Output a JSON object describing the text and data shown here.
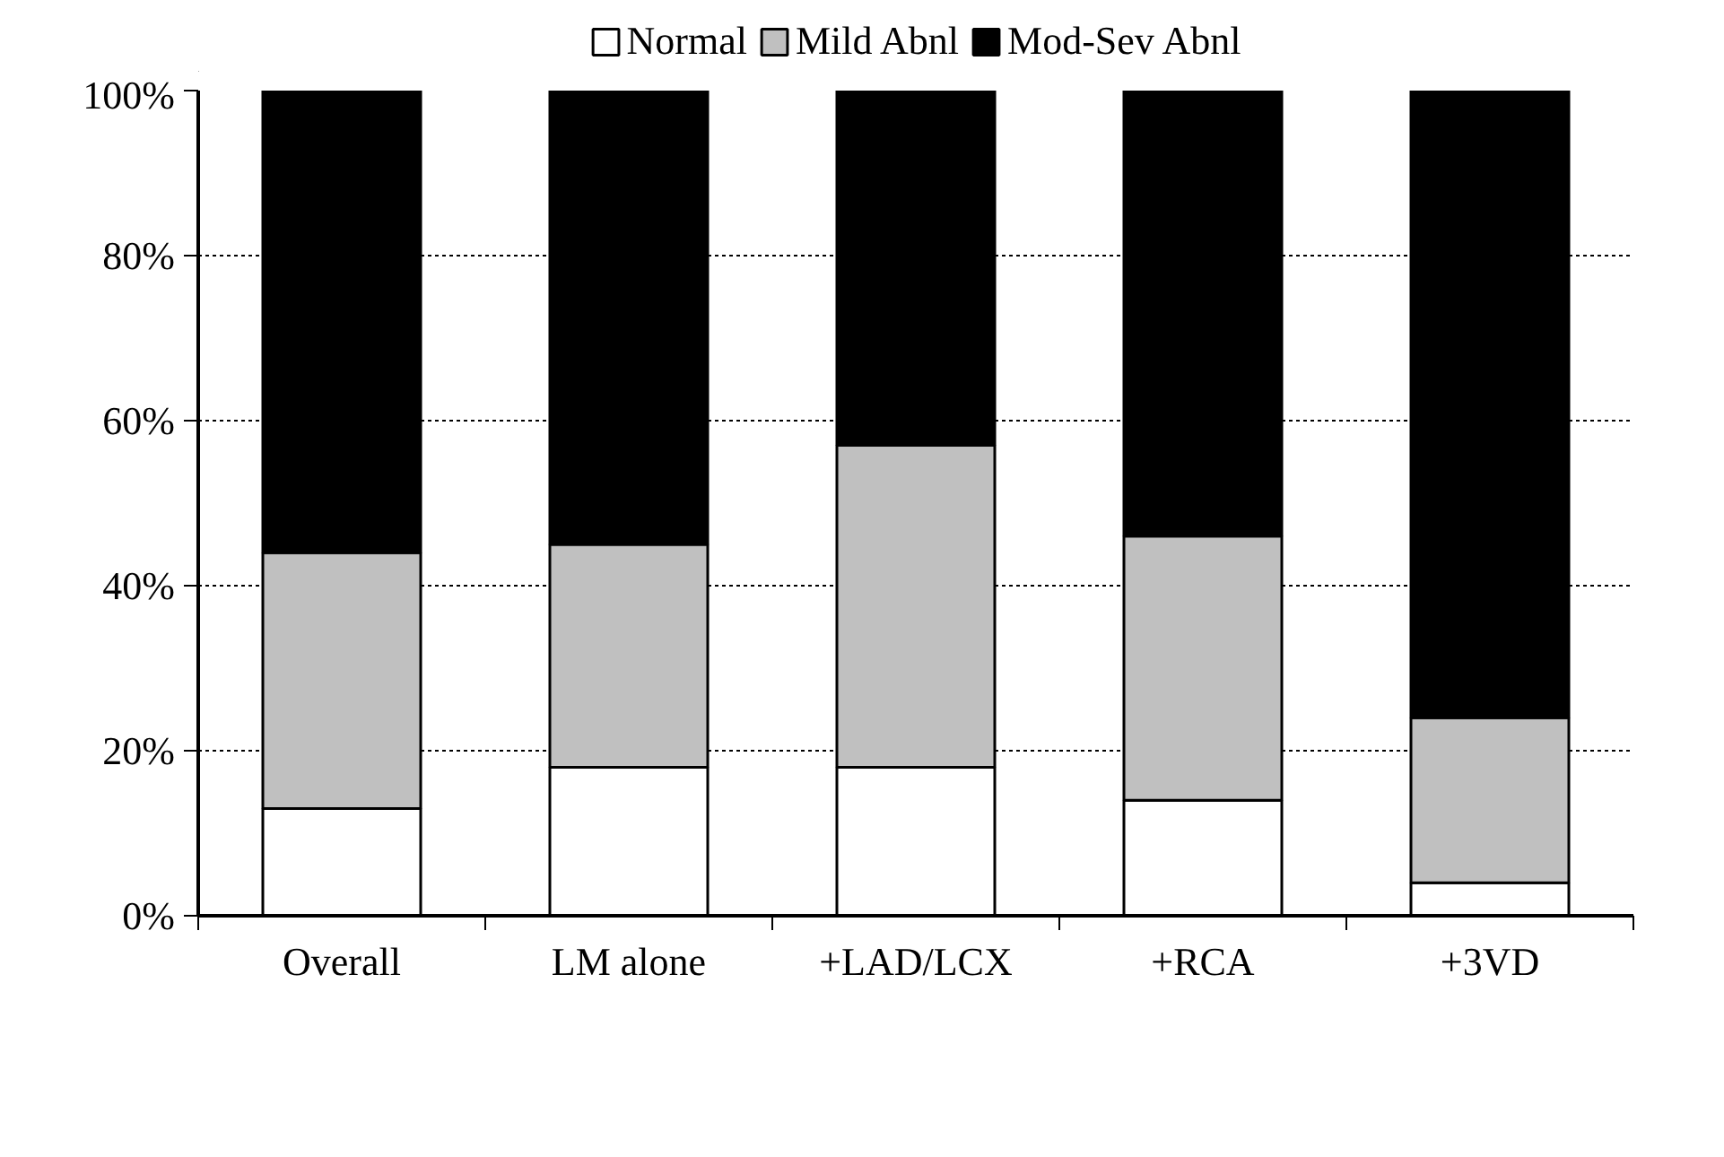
{
  "chart_data": {
    "type": "bar",
    "stacked": true,
    "categories": [
      "Overall",
      "LM alone",
      "+LAD/LCX",
      "+RCA",
      "+3VD"
    ],
    "series": [
      {
        "name": "Normal",
        "color": "#ffffff",
        "values": [
          13,
          18,
          18,
          14,
          4
        ]
      },
      {
        "name": "Mild Abnl",
        "color": "#c0c0c0",
        "values": [
          31,
          27,
          39,
          32,
          20
        ]
      },
      {
        "name": "Mod-Sev Abnl",
        "color": "#000000",
        "values": [
          56,
          55,
          43,
          54,
          76
        ]
      }
    ],
    "ylim": [
      0,
      100
    ],
    "yticks": [
      {
        "value": 0,
        "label": "0%"
      },
      {
        "value": 20,
        "label": "20%"
      },
      {
        "value": 40,
        "label": "40%"
      },
      {
        "value": 60,
        "label": "60%"
      },
      {
        "value": 80,
        "label": "80%"
      },
      {
        "value": 100,
        "label": "100%"
      }
    ],
    "grid": "y",
    "legend": "top"
  }
}
